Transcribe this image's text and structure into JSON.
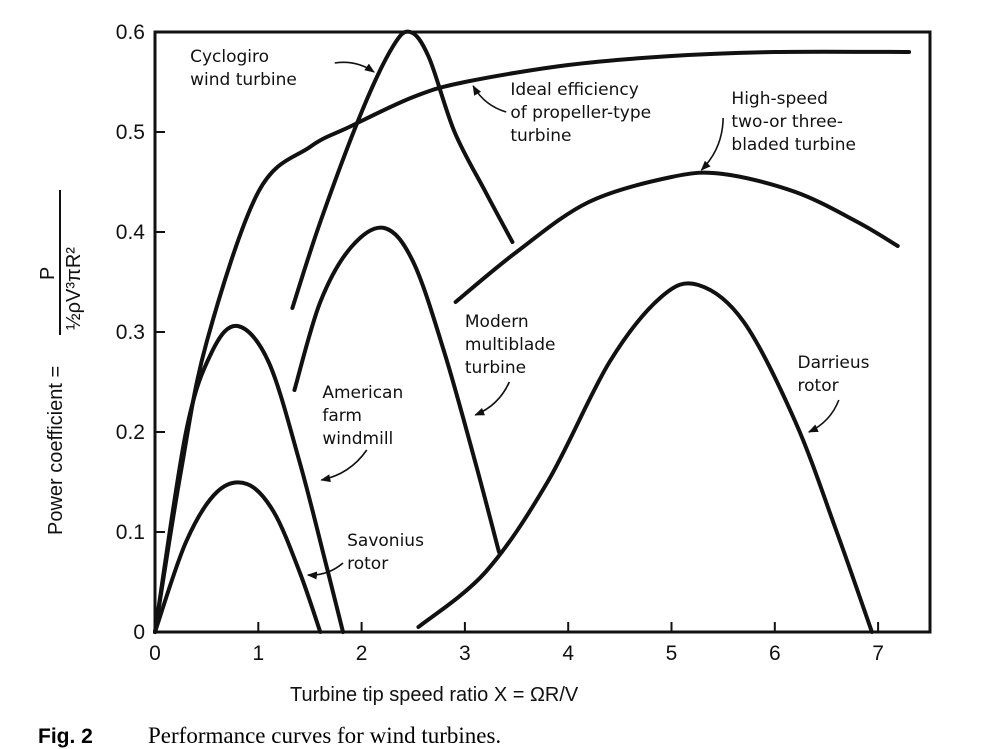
{
  "chart_data": {
    "type": "line",
    "title": "",
    "xlabel": "Turbine tip speed ratio Χ = ΩR/V",
    "ylabel": "Power coefficient =",
    "ylabel_formula": {
      "numerator": "P",
      "denominator": "½ρV³πR²"
    },
    "xlim": [
      0,
      7.5
    ],
    "ylim": [
      0,
      0.6
    ],
    "xticks": [
      "0",
      "1",
      "2",
      "3",
      "4",
      "5",
      "6",
      "7"
    ],
    "yticks": [
      "0",
      "0.1",
      "0.2",
      "0.3",
      "0.4",
      "0.5",
      "0.6"
    ],
    "grid": false,
    "series": [
      {
        "name": "Ideal efficiency of propeller-type turbine",
        "x": [
          0,
          0.25,
          0.5,
          1,
          1.5,
          1.88,
          2.5,
          3,
          4,
          5,
          6,
          7.3
        ],
        "y": [
          0,
          0.16,
          0.29,
          0.44,
          0.485,
          0.505,
          0.535,
          0.55,
          0.567,
          0.576,
          0.58,
          0.58
        ]
      },
      {
        "name": "Cyclogiro wind turbine",
        "x": [
          1.33,
          1.6,
          2.0,
          2.3,
          2.47,
          2.65,
          2.9,
          3.2,
          3.46
        ],
        "y": [
          0.324,
          0.41,
          0.52,
          0.585,
          0.6,
          0.575,
          0.5,
          0.44,
          0.39
        ]
      },
      {
        "name": "High-speed two-or three-bladed turbine",
        "x": [
          2.91,
          3.5,
          4.2,
          5.0,
          5.5,
          6.2,
          6.8,
          7.19
        ],
        "y": [
          0.33,
          0.38,
          0.43,
          0.455,
          0.458,
          0.44,
          0.41,
          0.386
        ]
      },
      {
        "name": "Modern multiblade turbine",
        "x": [
          1.35,
          1.6,
          1.9,
          2.22,
          2.5,
          2.8,
          3.1,
          3.33
        ],
        "y": [
          0.242,
          0.33,
          0.385,
          0.404,
          0.37,
          0.28,
          0.17,
          0.08
        ]
      },
      {
        "name": "American farm windmill",
        "x": [
          0,
          0.3,
          0.55,
          0.8,
          1.1,
          1.4,
          1.65,
          1.82
        ],
        "y": [
          0,
          0.2,
          0.28,
          0.306,
          0.27,
          0.17,
          0.07,
          0
        ]
      },
      {
        "name": "Savonius rotor",
        "x": [
          0,
          0.3,
          0.6,
          0.89,
          1.15,
          1.4,
          1.6
        ],
        "y": [
          0,
          0.09,
          0.14,
          0.148,
          0.12,
          0.06,
          0
        ]
      },
      {
        "name": "Darrieus rotor",
        "x": [
          2.55,
          3.2,
          3.8,
          4.4,
          4.9,
          5.26,
          5.7,
          6.2,
          6.6,
          6.94
        ],
        "y": [
          0.005,
          0.06,
          0.15,
          0.27,
          0.335,
          0.347,
          0.31,
          0.21,
          0.1,
          0
        ]
      }
    ],
    "annotations": [
      {
        "lines": [
          "Cyclogiro",
          "wind turbine"
        ],
        "x": 0.34,
        "y": 0.57,
        "arrow_from": [
          1.74,
          0.569
        ],
        "arrow_to": [
          2.12,
          0.56
        ]
      },
      {
        "lines": [
          "Ideal efficiency",
          "of propeller-type",
          "turbine"
        ],
        "x": 3.44,
        "y": 0.537,
        "arrow_from": [
          3.4,
          0.52
        ],
        "arrow_to": [
          3.08,
          0.546
        ]
      },
      {
        "lines": [
          "High-speed",
          "two-or three-",
          "bladed turbine"
        ],
        "x": 5.58,
        "y": 0.528,
        "arrow_from": [
          5.5,
          0.514
        ],
        "arrow_to": [
          5.29,
          0.462
        ]
      },
      {
        "lines": [
          "Modern",
          "multiblade",
          "turbine"
        ],
        "x": 3.0,
        "y": 0.305,
        "arrow_from": [
          3.43,
          0.25
        ],
        "arrow_to": [
          3.1,
          0.217
        ]
      },
      {
        "lines": [
          "Darrieus",
          "rotor"
        ],
        "x": 6.22,
        "y": 0.264,
        "arrow_from": [
          6.62,
          0.232
        ],
        "arrow_to": [
          6.33,
          0.2
        ]
      },
      {
        "lines": [
          "American",
          "farm",
          "windmill"
        ],
        "x": 1.62,
        "y": 0.234,
        "arrow_from": [
          2.05,
          0.182
        ],
        "arrow_to": [
          1.61,
          0.152
        ]
      },
      {
        "lines": [
          "Savonius",
          "rotor"
        ],
        "x": 1.86,
        "y": 0.086,
        "arrow_from": [
          1.82,
          0.069
        ],
        "arrow_to": [
          1.48,
          0.057
        ]
      }
    ]
  },
  "caption": {
    "label": "Fig. 2",
    "text": "Performance curves for wind turbines."
  }
}
